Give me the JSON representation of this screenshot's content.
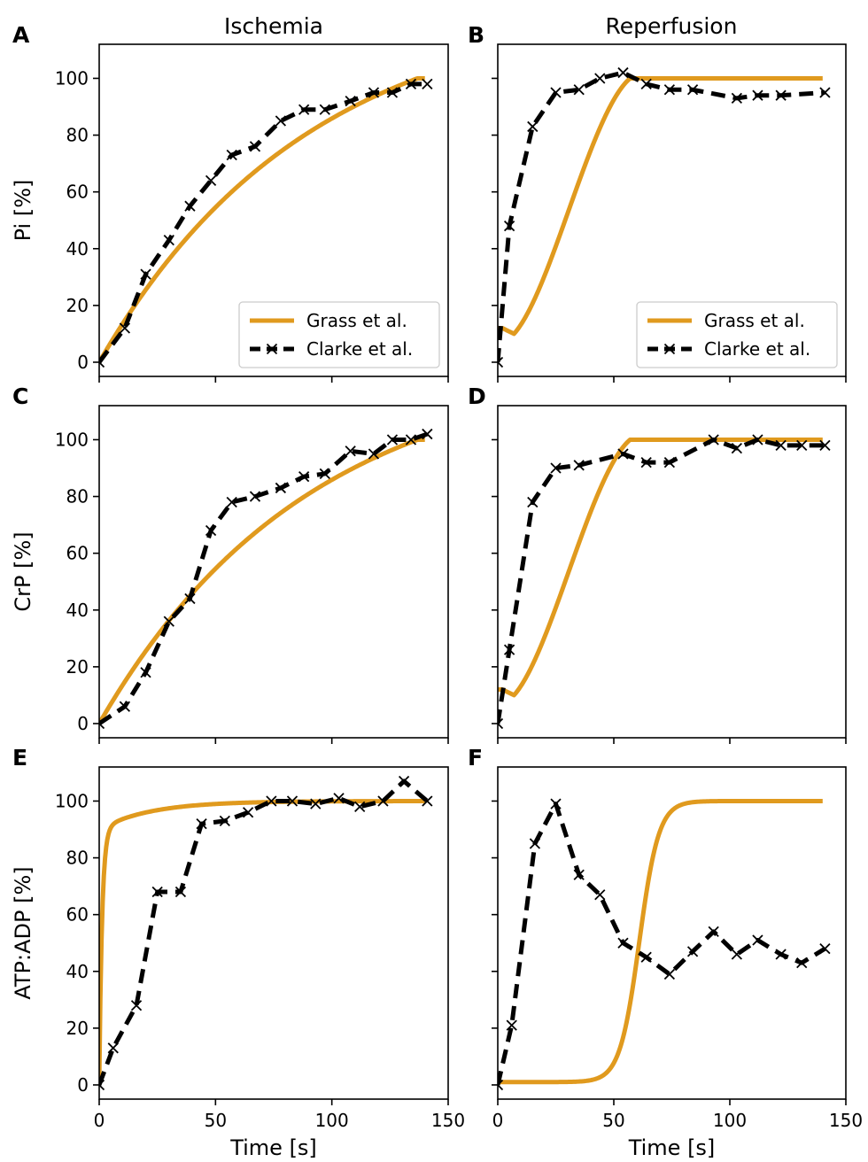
{
  "figure": {
    "column_titles": [
      "Ischemia",
      "Reperfusion"
    ],
    "row_ylabels": [
      "Pi [%]",
      "CrP [%]",
      "ATP:ADP [%]"
    ],
    "xlabel": "Time [s]"
  },
  "colors": {
    "grass": "#e09a1e",
    "clarke": "#000000"
  },
  "chart_data": [
    {
      "panel": "A",
      "type": "line",
      "ylabel": "Pi [%]",
      "xlabel": "",
      "xlim": [
        0,
        150
      ],
      "ylim": [
        -5,
        112
      ],
      "xticks": [
        0,
        50,
        100,
        150
      ],
      "yticks": [
        0,
        20,
        40,
        60,
        80,
        100
      ],
      "show_xticklabels": false,
      "show_yticklabels": true,
      "legend": {
        "position": "lower-right",
        "entries": [
          "Grass et al.",
          "Clarke et al."
        ]
      },
      "series": [
        {
          "name": "Grass et al.",
          "model": "pi_isch"
        },
        {
          "name": "Clarke et al.",
          "x": [
            0,
            11,
            20,
            30,
            39,
            48,
            57,
            67,
            78,
            88,
            97,
            108,
            118,
            126,
            134,
            141
          ],
          "y": [
            0,
            12,
            31,
            43,
            55,
            64,
            73,
            76,
            85,
            89,
            89,
            92,
            95,
            95,
            98,
            98
          ]
        }
      ]
    },
    {
      "panel": "B",
      "type": "line",
      "ylabel": "",
      "xlabel": "",
      "xlim": [
        0,
        150
      ],
      "ylim": [
        -5,
        112
      ],
      "xticks": [
        0,
        50,
        100,
        150
      ],
      "yticks": [
        0,
        20,
        40,
        60,
        80,
        100
      ],
      "show_xticklabels": false,
      "show_yticklabels": false,
      "legend": {
        "position": "lower-right",
        "entries": [
          "Grass et al.",
          "Clarke et al."
        ]
      },
      "series": [
        {
          "name": "Grass et al.",
          "model": "pi_rep"
        },
        {
          "name": "Clarke et al.",
          "x": [
            0,
            5,
            15,
            25,
            35,
            44,
            54,
            64,
            74,
            84,
            103,
            112,
            122,
            141
          ],
          "y": [
            0,
            48,
            83,
            95,
            96,
            100,
            102,
            98,
            96,
            96,
            93,
            94,
            94,
            95
          ]
        }
      ]
    },
    {
      "panel": "C",
      "type": "line",
      "ylabel": "CrP [%]",
      "xlabel": "",
      "xlim": [
        0,
        150
      ],
      "ylim": [
        -5,
        112
      ],
      "xticks": [
        0,
        50,
        100,
        150
      ],
      "yticks": [
        0,
        20,
        40,
        60,
        80,
        100
      ],
      "show_xticklabels": false,
      "show_yticklabels": true,
      "series": [
        {
          "name": "Grass et al.",
          "model": "crp_isch"
        },
        {
          "name": "Clarke et al.",
          "x": [
            0,
            11,
            20,
            30,
            39,
            48,
            57,
            67,
            78,
            88,
            97,
            108,
            118,
            126,
            134,
            141
          ],
          "y": [
            0,
            6,
            18,
            36,
            44,
            68,
            78,
            80,
            83,
            87,
            88,
            96,
            95,
            100,
            100,
            102
          ]
        }
      ]
    },
    {
      "panel": "D",
      "type": "line",
      "ylabel": "",
      "xlabel": "",
      "xlim": [
        0,
        150
      ],
      "ylim": [
        -5,
        112
      ],
      "xticks": [
        0,
        50,
        100,
        150
      ],
      "yticks": [
        0,
        20,
        40,
        60,
        80,
        100
      ],
      "show_xticklabels": false,
      "show_yticklabels": false,
      "series": [
        {
          "name": "Grass et al.",
          "model": "crp_rep"
        },
        {
          "name": "Clarke et al.",
          "x": [
            0,
            5,
            15,
            25,
            35,
            54,
            64,
            74,
            93,
            103,
            112,
            122,
            131,
            141
          ],
          "y": [
            0,
            26,
            78,
            90,
            91,
            95,
            92,
            92,
            100,
            97,
            100,
            98,
            98,
            98
          ]
        }
      ]
    },
    {
      "panel": "E",
      "type": "line",
      "ylabel": "ATP:ADP [%]",
      "xlabel": "Time [s]",
      "xlim": [
        0,
        150
      ],
      "ylim": [
        -5,
        112
      ],
      "xticks": [
        0,
        50,
        100,
        150
      ],
      "yticks": [
        0,
        20,
        40,
        60,
        80,
        100
      ],
      "show_xticklabels": true,
      "show_yticklabels": true,
      "series": [
        {
          "name": "Grass et al.",
          "model": "atp_isch"
        },
        {
          "name": "Clarke et al.",
          "x": [
            0,
            6,
            16,
            25,
            35,
            44,
            54,
            64,
            74,
            83,
            93,
            103,
            112,
            122,
            131,
            141
          ],
          "y": [
            0,
            13,
            28,
            68,
            68,
            92,
            93,
            96,
            100,
            100,
            99,
            101,
            98,
            100,
            107,
            100
          ]
        }
      ]
    },
    {
      "panel": "F",
      "type": "line",
      "ylabel": "",
      "xlabel": "Time [s]",
      "xlim": [
        0,
        150
      ],
      "ylim": [
        -5,
        112
      ],
      "xticks": [
        0,
        50,
        100,
        150
      ],
      "yticks": [
        0,
        20,
        40,
        60,
        80,
        100
      ],
      "show_xticklabels": true,
      "show_yticklabels": false,
      "series": [
        {
          "name": "Grass et al.",
          "model": "atp_rep"
        },
        {
          "name": "Clarke et al.",
          "x": [
            0,
            6,
            16,
            25,
            35,
            44,
            54,
            64,
            74,
            84,
            93,
            103,
            112,
            122,
            131,
            141
          ],
          "y": [
            0,
            21,
            85,
            99,
            74,
            67,
            50,
            45,
            39,
            47,
            54,
            46,
            51,
            46,
            43,
            48
          ]
        }
      ]
    }
  ]
}
